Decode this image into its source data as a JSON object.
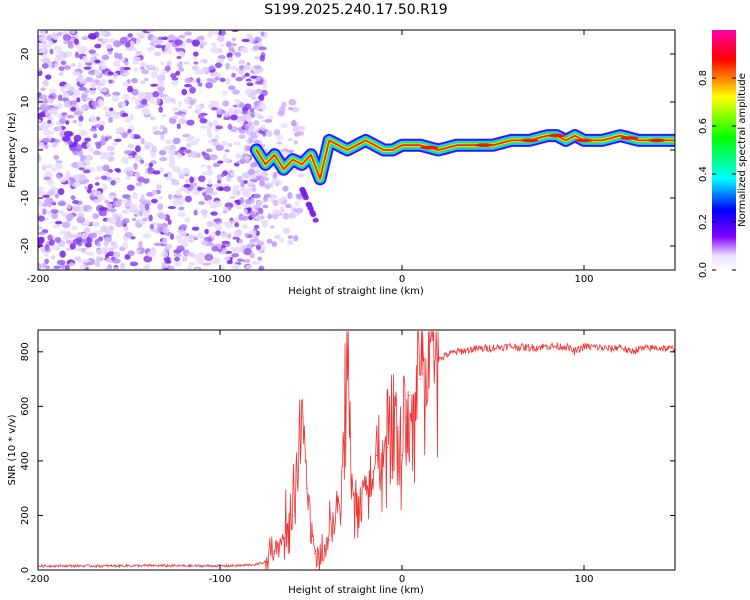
{
  "title": "S199.2025.240.17.50.R19",
  "chart_data": [
    {
      "type": "heatmap",
      "title": "",
      "xlabel": "Height of straight line (km)",
      "ylabel": "Frequency (Hz)",
      "xlim": [
        -200,
        150
      ],
      "ylim": [
        -25,
        25
      ],
      "xticks": [
        -200,
        -100,
        0,
        100
      ],
      "xtick_labels": [
        "-200",
        "-100",
        "0",
        "100"
      ],
      "yticks": [
        -20,
        -10,
        0,
        10,
        20
      ],
      "ytick_labels": [
        "-20",
        "-10",
        "0",
        "10",
        "20"
      ],
      "ridge": {
        "name": "spectral peak track",
        "x": [
          -80,
          -75,
          -70,
          -65,
          -60,
          -55,
          -50,
          -45,
          -40,
          -35,
          -30,
          -25,
          -20,
          -15,
          -10,
          -5,
          0,
          10,
          20,
          30,
          40,
          50,
          60,
          70,
          80,
          85,
          90,
          95,
          100,
          110,
          120,
          130,
          140,
          150
        ],
        "y": [
          0,
          -3,
          -1,
          -4,
          -2,
          -3,
          -1,
          -6,
          2,
          1,
          0,
          1,
          2,
          1,
          0,
          0,
          1,
          1,
          0,
          1,
          1,
          1,
          2,
          2,
          3,
          3,
          2,
          3,
          2,
          2,
          3,
          2,
          2,
          2
        ]
      },
      "colorbar": {
        "label": "Normalized spectral amplitude",
        "range": [
          0,
          1
        ],
        "ticks": [
          0.0,
          0.2,
          0.4,
          0.6,
          0.8
        ],
        "tick_labels": [
          "0.0",
          "0.2",
          "0.4",
          "0.6",
          "0.8"
        ],
        "colors": [
          "#ffffff",
          "#8000ff",
          "#0000ff",
          "#00ffff",
          "#00ff00",
          "#ffff00",
          "#ff0000",
          "#ff00aa"
        ]
      }
    },
    {
      "type": "line",
      "title": "",
      "xlabel": "Height of straight line (km)",
      "ylabel": "SNR (10 * v/v)",
      "xlim": [
        -200,
        150
      ],
      "ylim": [
        0,
        880
      ],
      "xticks": [
        -200,
        -100,
        0,
        100
      ],
      "xtick_labels": [
        "-200",
        "-100",
        "0",
        "100"
      ],
      "yticks": [
        0,
        200,
        400,
        600,
        800
      ],
      "ytick_labels": [
        "0",
        "200",
        "400",
        "600",
        "800"
      ],
      "series": [
        {
          "name": "SNR",
          "color": "#ee3333",
          "x": [
            -200,
            -180,
            -160,
            -140,
            -120,
            -100,
            -90,
            -80,
            -75,
            -70,
            -65,
            -60,
            -57,
            -55,
            -52,
            -50,
            -48,
            -45,
            -42,
            -40,
            -38,
            -35,
            -33,
            -31,
            -30,
            -29,
            -28,
            -26,
            -24,
            -22,
            -20,
            -18,
            -16,
            -14,
            -12,
            -10,
            -8,
            -6,
            -4,
            -2,
            0,
            2,
            4,
            6,
            8,
            10,
            12,
            15,
            20,
            25,
            30,
            35,
            40,
            50,
            60,
            70,
            80,
            90,
            95,
            100,
            110,
            115,
            120,
            125,
            130,
            140,
            150
          ],
          "y": [
            15,
            15,
            15,
            16,
            15,
            15,
            16,
            20,
            30,
            60,
            110,
            200,
            360,
            560,
            300,
            120,
            60,
            20,
            90,
            110,
            140,
            250,
            360,
            600,
            860,
            500,
            330,
            200,
            230,
            280,
            300,
            270,
            360,
            420,
            330,
            380,
            450,
            340,
            520,
            360,
            420,
            560,
            640,
            560,
            680,
            700,
            720,
            740,
            770,
            790,
            800,
            805,
            810,
            815,
            820,
            815,
            820,
            820,
            800,
            820,
            815,
            810,
            820,
            800,
            810,
            815,
            810
          ]
        }
      ]
    }
  ]
}
